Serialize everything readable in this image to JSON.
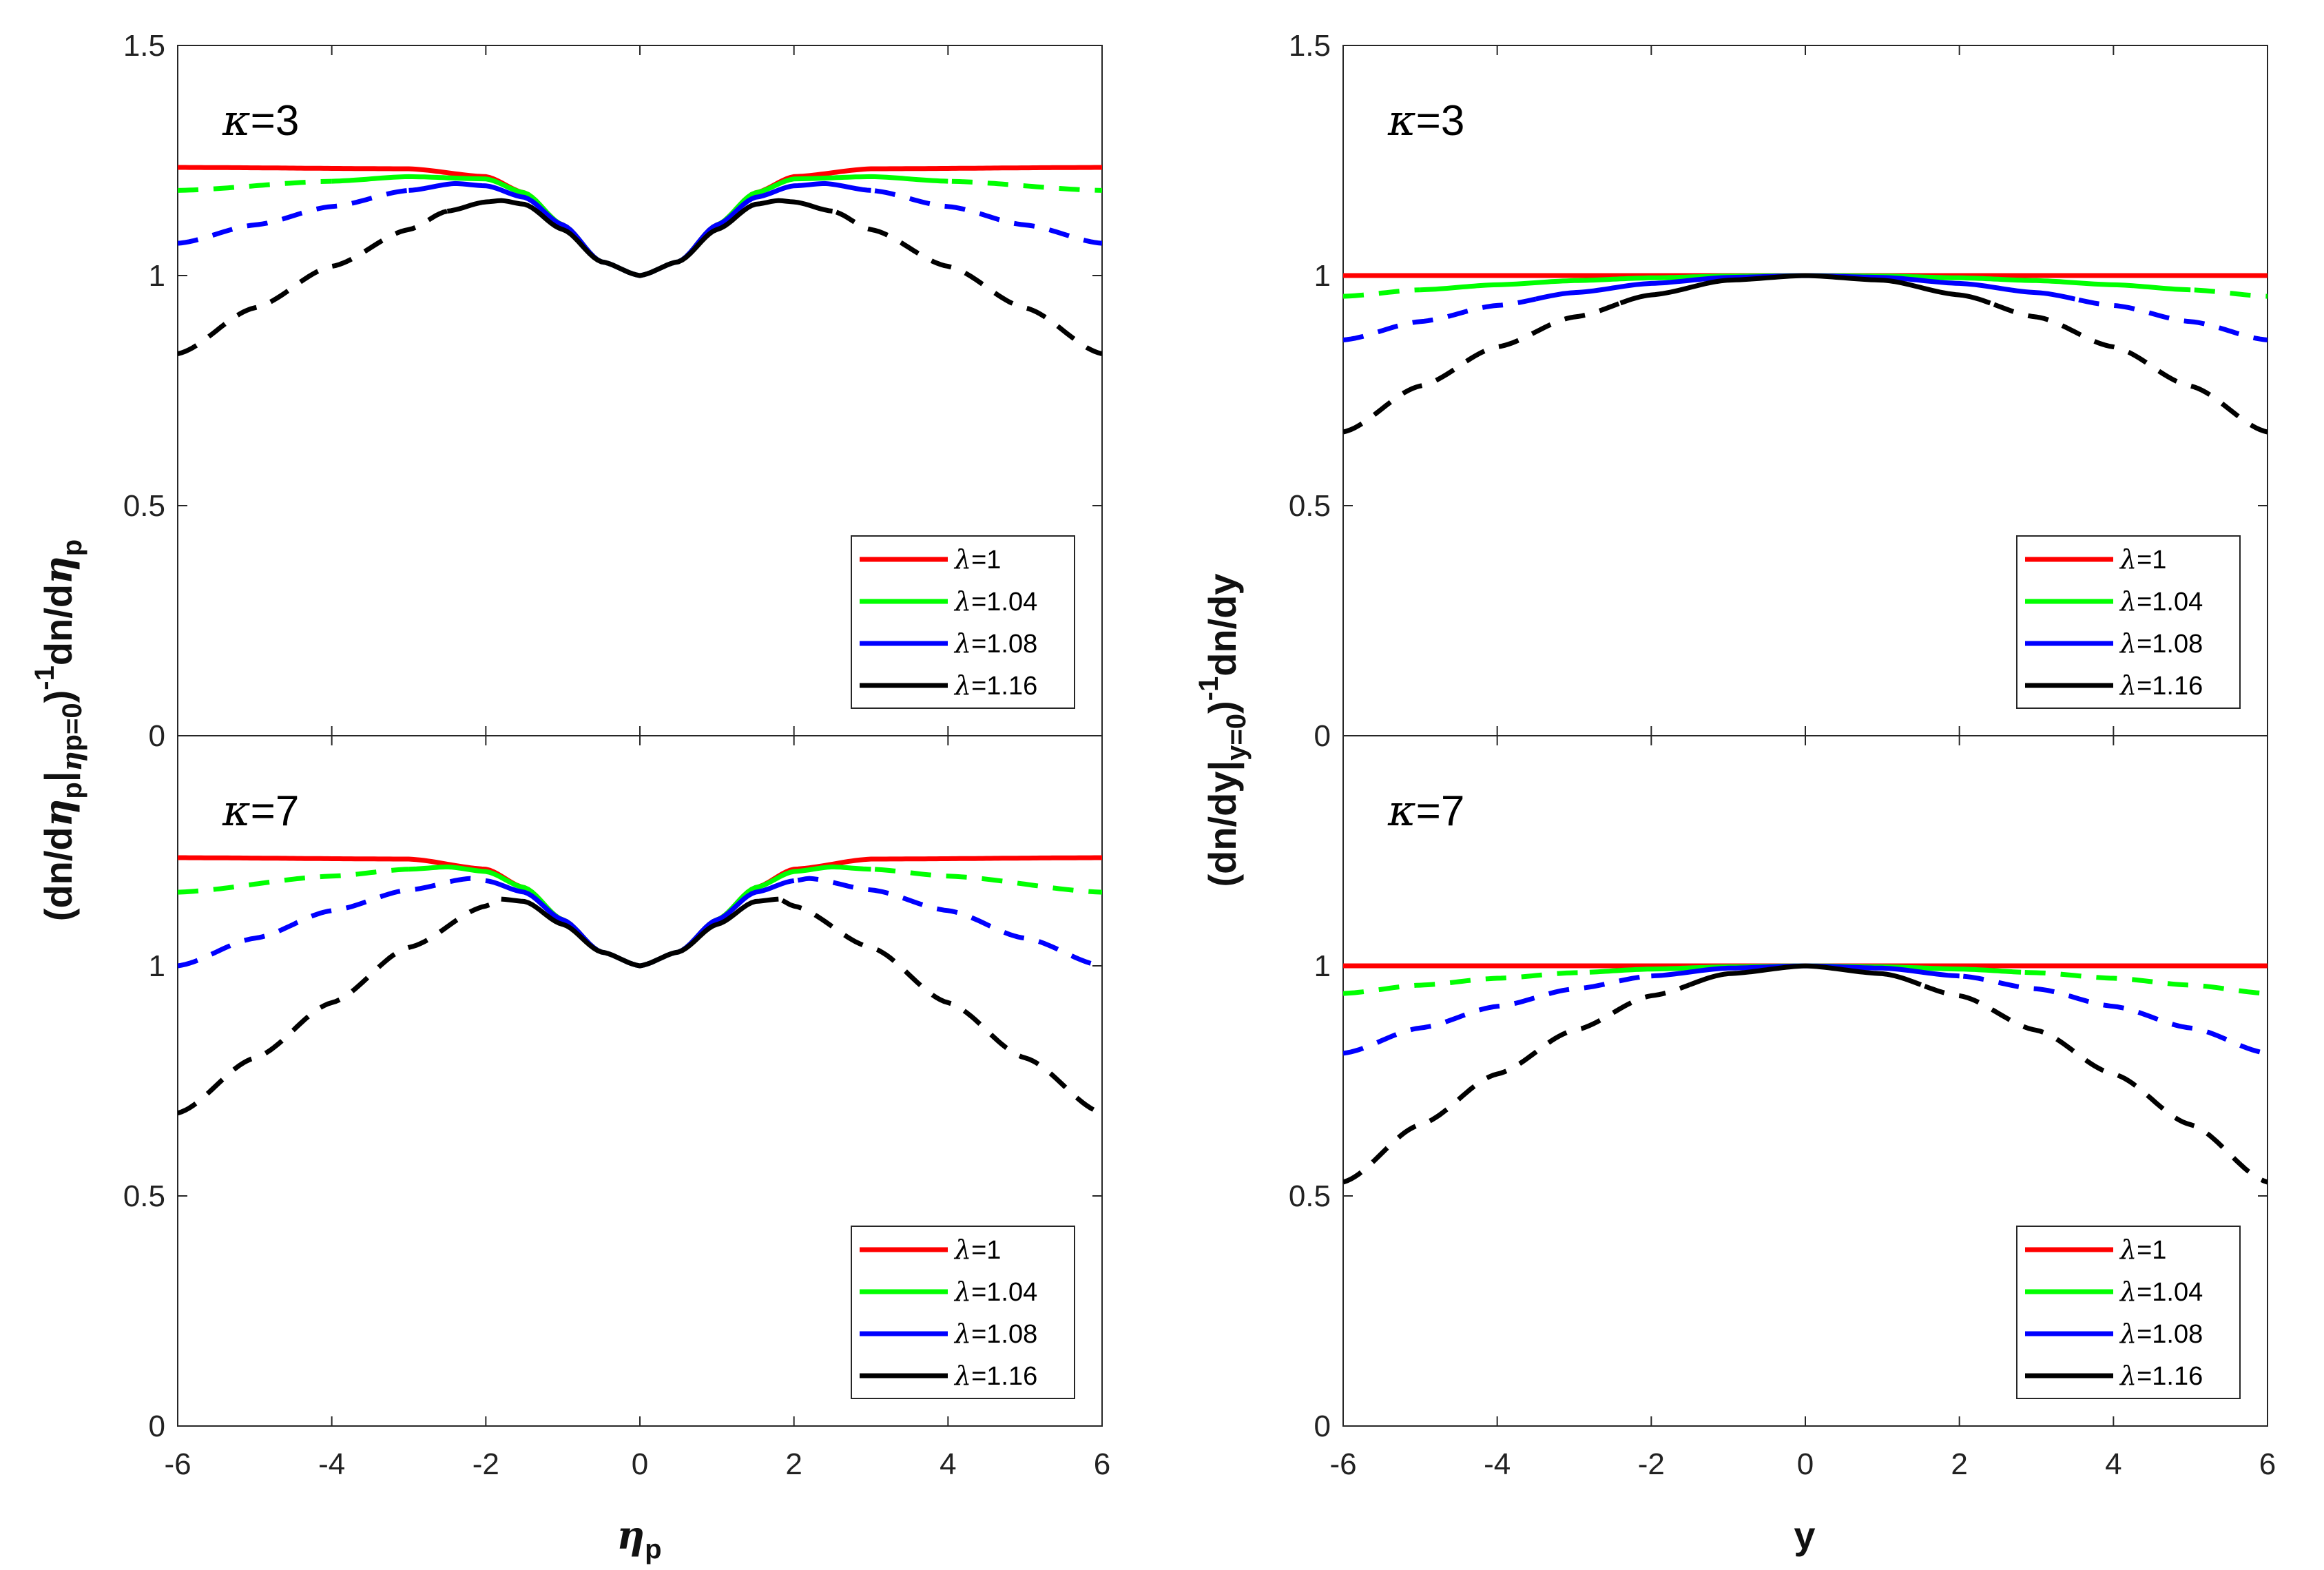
{
  "chart_data": [
    {
      "type": "line",
      "panel": "top-left",
      "title": "κ=3",
      "kappa": 3,
      "variable": "eta_p",
      "xlabel": "η",
      "xlabel_sub": "p",
      "ylabel": "(dn/dηp|ηp=0)⁻¹dn/dηp",
      "xlim": [
        -6,
        6
      ],
      "ylim": [
        0,
        1.5
      ],
      "xticks": [
        "-6",
        "-4",
        "-2",
        "0",
        "2",
        "4",
        "6"
      ],
      "yticks": [
        "0",
        "0.5",
        "1",
        "1.5"
      ],
      "show_xticks": false,
      "legend": [
        "λ=1",
        "λ=1.04",
        "λ=1.08",
        "λ=1.16"
      ],
      "legend_position": "bottom-right",
      "series": [
        {
          "name": "λ=1",
          "color": "#ff0000",
          "solid_range": [
            -6,
            6
          ],
          "x": [
            -6,
            -3,
            -2,
            -1.5,
            -1,
            -0.5,
            0,
            0.5,
            1,
            1.5,
            2,
            3,
            6
          ],
          "y": [
            1.235,
            1.232,
            1.215,
            1.18,
            1.11,
            1.03,
            1.0,
            1.03,
            1.11,
            1.18,
            1.215,
            1.232,
            1.235
          ]
        },
        {
          "name": "λ=1.04",
          "color": "#00ff00",
          "solid_range": [
            -4,
            4
          ],
          "x": [
            -6,
            -4,
            -3,
            -2,
            -1.5,
            -1,
            -0.5,
            0,
            0.5,
            1,
            1.5,
            2,
            3,
            4,
            6
          ],
          "y": [
            1.185,
            1.205,
            1.215,
            1.21,
            1.18,
            1.11,
            1.03,
            1.0,
            1.03,
            1.11,
            1.18,
            1.21,
            1.215,
            1.205,
            1.185
          ]
        },
        {
          "name": "λ=1.08",
          "color": "#0000ff",
          "solid_range": [
            -3,
            3
          ],
          "x": [
            -6,
            -5,
            -4,
            -3,
            -2.4,
            -2,
            -1.5,
            -1,
            -0.5,
            0,
            0.5,
            1,
            1.5,
            2,
            2.4,
            3,
            4,
            5,
            6
          ],
          "y": [
            1.07,
            1.11,
            1.15,
            1.185,
            1.2,
            1.195,
            1.17,
            1.11,
            1.03,
            1.0,
            1.03,
            1.11,
            1.17,
            1.195,
            1.2,
            1.185,
            1.15,
            1.11,
            1.07
          ]
        },
        {
          "name": "λ=1.16",
          "color": "#000000",
          "solid_range": [
            -2.5,
            2.5
          ],
          "x": [
            -6,
            -5,
            -4,
            -3,
            -2.5,
            -2,
            -1.8,
            -1.5,
            -1,
            -0.5,
            0,
            0.5,
            1,
            1.5,
            1.8,
            2,
            2.5,
            3,
            4,
            5,
            6
          ],
          "y": [
            0.83,
            0.93,
            1.02,
            1.1,
            1.14,
            1.16,
            1.163,
            1.155,
            1.1,
            1.03,
            1.0,
            1.03,
            1.1,
            1.155,
            1.163,
            1.16,
            1.14,
            1.1,
            1.02,
            0.93,
            0.83
          ]
        }
      ]
    },
    {
      "type": "line",
      "panel": "bottom-left",
      "title": "κ=7",
      "kappa": 7,
      "variable": "eta_p",
      "xlabel": "η",
      "xlabel_sub": "p",
      "ylabel": "(dn/dηp|ηp=0)⁻¹dn/dηp",
      "xlim": [
        -6,
        6
      ],
      "ylim": [
        0,
        1.5
      ],
      "xticks": [
        "-6",
        "-4",
        "-2",
        "0",
        "2",
        "4",
        "6"
      ],
      "yticks": [
        "0",
        "0.5",
        "1"
      ],
      "show_xticks": true,
      "legend": [
        "λ=1",
        "λ=1.04",
        "λ=1.08",
        "λ=1.16"
      ],
      "legend_position": "bottom-right",
      "series": [
        {
          "name": "λ=1",
          "color": "#ff0000",
          "solid_range": [
            -6,
            6
          ],
          "x": [
            -6,
            -3,
            -2,
            -1.5,
            -1,
            -0.5,
            0,
            0.5,
            1,
            1.5,
            2,
            3,
            6
          ],
          "y": [
            1.235,
            1.232,
            1.21,
            1.17,
            1.1,
            1.03,
            1.0,
            1.03,
            1.1,
            1.17,
            1.21,
            1.232,
            1.235
          ]
        },
        {
          "name": "λ=1.04",
          "color": "#00ff00",
          "solid_range": [
            -3,
            3
          ],
          "x": [
            -6,
            -4,
            -3,
            -2.5,
            -2,
            -1.5,
            -1,
            -0.5,
            0,
            0.5,
            1,
            1.5,
            2,
            2.5,
            3,
            4,
            6
          ],
          "y": [
            1.16,
            1.195,
            1.21,
            1.215,
            1.205,
            1.17,
            1.1,
            1.03,
            1.0,
            1.03,
            1.1,
            1.17,
            1.205,
            1.215,
            1.21,
            1.195,
            1.16
          ]
        },
        {
          "name": "λ=1.08",
          "color": "#0000ff",
          "solid_range": [
            -2,
            2
          ],
          "x": [
            -6,
            -5,
            -4,
            -3,
            -2.2,
            -2,
            -1.5,
            -1,
            -0.5,
            0,
            0.5,
            1,
            1.5,
            2,
            2.2,
            3,
            4,
            5,
            6
          ],
          "y": [
            1.0,
            1.06,
            1.12,
            1.165,
            1.19,
            1.185,
            1.16,
            1.1,
            1.03,
            1.0,
            1.03,
            1.1,
            1.16,
            1.185,
            1.19,
            1.165,
            1.12,
            1.06,
            1.0
          ]
        },
        {
          "name": "λ=1.16",
          "color": "#000000",
          "solid_range": [
            -1.8,
            1.8
          ],
          "x": [
            -6,
            -5,
            -4,
            -3,
            -2,
            -1.8,
            -1.5,
            -1,
            -0.5,
            0,
            0.5,
            1,
            1.5,
            1.8,
            2,
            3,
            4,
            5,
            6
          ],
          "y": [
            0.68,
            0.8,
            0.92,
            1.04,
            1.13,
            1.145,
            1.14,
            1.09,
            1.03,
            1.0,
            1.03,
            1.09,
            1.14,
            1.145,
            1.13,
            1.04,
            0.92,
            0.8,
            0.68
          ]
        }
      ]
    },
    {
      "type": "line",
      "panel": "top-right",
      "title": "κ=3",
      "kappa": 3,
      "variable": "y",
      "xlabel": "y",
      "xlabel_sub": "",
      "ylabel": "(dn/dy|y=0)⁻¹dn/dy",
      "xlim": [
        -6,
        6
      ],
      "ylim": [
        0,
        1.5
      ],
      "xticks": [
        "-6",
        "-4",
        "-2",
        "0",
        "2",
        "4",
        "6"
      ],
      "yticks": [
        "0",
        "0.5",
        "1",
        "1.5"
      ],
      "show_xticks": false,
      "legend": [
        "λ=1",
        "λ=1.04",
        "λ=1.08",
        "λ=1.16"
      ],
      "legend_position": "bottom-right",
      "series": [
        {
          "name": "λ=1",
          "color": "#ff0000",
          "solid_range": [
            -6,
            6
          ],
          "x": [
            -6,
            0,
            6
          ],
          "y": [
            1.0,
            1.0,
            1.0
          ]
        },
        {
          "name": "λ=1.04",
          "color": "#00ff00",
          "solid_range": [
            -5,
            5
          ],
          "x": [
            -6,
            -5,
            -4,
            -3,
            -2,
            -1,
            0,
            1,
            2,
            3,
            4,
            5,
            6
          ],
          "y": [
            0.955,
            0.969,
            0.98,
            0.989,
            0.995,
            0.999,
            1.0,
            0.999,
            0.995,
            0.989,
            0.98,
            0.969,
            0.955
          ]
        },
        {
          "name": "λ=1.08",
          "color": "#0000ff",
          "solid_range": [
            -3.5,
            3.5
          ],
          "x": [
            -6,
            -5,
            -4,
            -3,
            -2,
            -1,
            0,
            1,
            2,
            3,
            4,
            5,
            6
          ],
          "y": [
            0.86,
            0.9,
            0.935,
            0.963,
            0.983,
            0.996,
            1.0,
            0.996,
            0.983,
            0.963,
            0.935,
            0.9,
            0.86
          ]
        },
        {
          "name": "λ=1.16",
          "color": "#000000",
          "solid_range": [
            -2.4,
            2.4
          ],
          "x": [
            -6,
            -5,
            -4,
            -3,
            -2,
            -1,
            0,
            1,
            2,
            3,
            4,
            5,
            6
          ],
          "y": [
            0.66,
            0.76,
            0.845,
            0.91,
            0.958,
            0.99,
            1.0,
            0.99,
            0.958,
            0.91,
            0.845,
            0.76,
            0.66
          ]
        }
      ]
    },
    {
      "type": "line",
      "panel": "bottom-right",
      "title": "κ=7",
      "kappa": 7,
      "variable": "y",
      "xlabel": "y",
      "xlabel_sub": "",
      "ylabel": "(dn/dy|y=0)⁻¹dn/dy",
      "xlim": [
        -6,
        6
      ],
      "ylim": [
        0,
        1.5
      ],
      "xticks": [
        "-6",
        "-4",
        "-2",
        "0",
        "2",
        "4",
        "6"
      ],
      "yticks": [
        "0",
        "0.5",
        "1"
      ],
      "show_xticks": true,
      "legend": [
        "λ=1",
        "λ=1.04",
        "λ=1.08",
        "λ=1.16"
      ],
      "legend_position": "bottom-right",
      "series": [
        {
          "name": "λ=1",
          "color": "#ff0000",
          "solid_range": [
            -6,
            6
          ],
          "x": [
            -6,
            0,
            6
          ],
          "y": [
            1.0,
            1.0,
            1.0
          ]
        },
        {
          "name": "λ=1.04",
          "color": "#00ff00",
          "solid_range": [
            -2.8,
            2.8
          ],
          "x": [
            -6,
            -5,
            -4,
            -3,
            -2,
            -1,
            0,
            1,
            2,
            3,
            4,
            5,
            6
          ],
          "y": [
            0.94,
            0.958,
            0.973,
            0.985,
            0.993,
            0.998,
            1.0,
            0.998,
            0.993,
            0.985,
            0.973,
            0.958,
            0.94
          ]
        },
        {
          "name": "λ=1.08",
          "color": "#0000ff",
          "solid_range": [
            -2,
            2
          ],
          "x": [
            -6,
            -5,
            -4,
            -3,
            -2,
            -1,
            0,
            1,
            2,
            3,
            4,
            5,
            6
          ],
          "y": [
            0.81,
            0.865,
            0.912,
            0.95,
            0.978,
            0.995,
            1.0,
            0.995,
            0.978,
            0.95,
            0.912,
            0.865,
            0.81
          ]
        },
        {
          "name": "λ=1.16",
          "color": "#000000",
          "solid_range": [
            -1.5,
            1.5
          ],
          "x": [
            -6,
            -5,
            -4,
            -3,
            -2,
            -1,
            0,
            1,
            2,
            3,
            4,
            5,
            6
          ],
          "y": [
            0.53,
            0.655,
            0.765,
            0.86,
            0.935,
            0.983,
            1.0,
            0.983,
            0.935,
            0.86,
            0.765,
            0.655,
            0.53
          ]
        }
      ]
    }
  ]
}
